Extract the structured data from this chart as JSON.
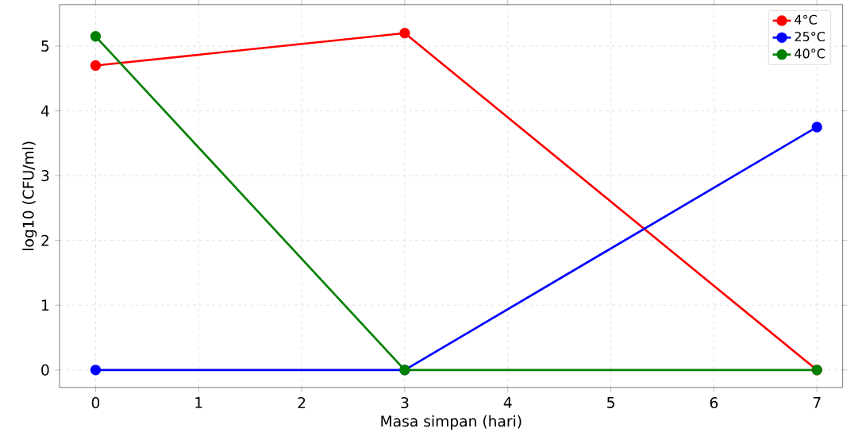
{
  "chart_data": {
    "type": "line",
    "xlabel": "Masa simpan (hari)",
    "ylabel": "log10 (CFU/ml)",
    "x": [
      0,
      3,
      7
    ],
    "series": [
      {
        "name": "4°C",
        "color": "#ff0000",
        "values": [
          4.7,
          5.2,
          0
        ]
      },
      {
        "name": "25°C",
        "color": "#0000ff",
        "values": [
          0,
          0,
          3.75
        ]
      },
      {
        "name": "40°C",
        "color": "#008000",
        "values": [
          5.15,
          0,
          0
        ]
      }
    ],
    "xlim": [
      -0.35,
      7.25
    ],
    "ylim": [
      -0.27,
      5.64
    ],
    "xticks": [
      0,
      1,
      2,
      3,
      4,
      5,
      6,
      7
    ],
    "yticks": [
      0,
      1,
      2,
      3,
      4,
      5
    ],
    "grid": true,
    "legend": "top right",
    "marker": "circle",
    "line_style": "solid"
  }
}
